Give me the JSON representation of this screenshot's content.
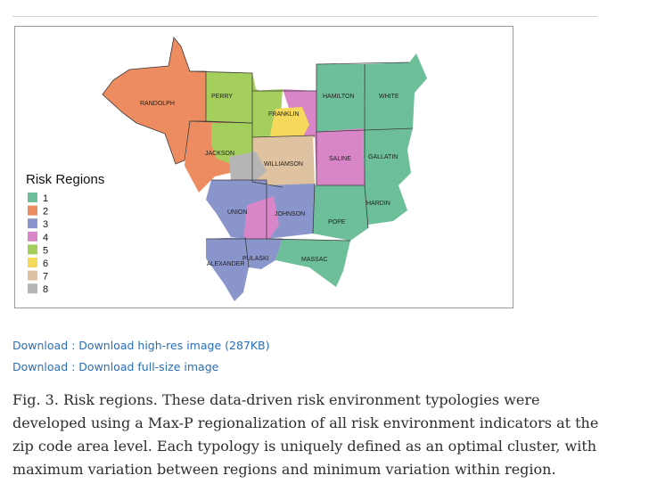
{
  "figure": {
    "legend": {
      "title": "Risk Regions",
      "items": [
        {
          "label": "1",
          "color": "#6dbf9a"
        },
        {
          "label": "2",
          "color": "#ec8c60"
        },
        {
          "label": "3",
          "color": "#8a95cc"
        },
        {
          "label": "4",
          "color": "#d986c8"
        },
        {
          "label": "5",
          "color": "#a4cf5c"
        },
        {
          "label": "6",
          "color": "#f6d95a"
        },
        {
          "label": "7",
          "color": "#dfc3a0"
        },
        {
          "label": "8",
          "color": "#b5b5b5"
        }
      ]
    },
    "counties": {
      "randolph": "RANDOLPH",
      "perry": "PERRY",
      "franklin": "FRANKLIN",
      "hamilton": "HAMILTON",
      "white": "WHITE",
      "jackson": "JACKSON",
      "williamson": "WILLIAMSON",
      "saline": "SALINE",
      "gallatin": "GALLATIN",
      "union": "UNION",
      "johnson": "JOHNSON",
      "pope": "POPE",
      "hardin": "HARDIN",
      "pulaski": "PULASKI",
      "alexander": "ALEXANDER",
      "massac": "MASSAC"
    }
  },
  "links": {
    "high_res": "Download : Download high-res image (287KB)",
    "full_size": "Download : Download full-size image"
  },
  "caption": "Fig. 3. Risk regions. These data-driven risk environment typologies were developed using a Max-P regionalization of all risk environment indicators at the zip code area level. Each typology is uniquely defined as an optimal cluster, with maximum variation between regions and minimum variation within region."
}
